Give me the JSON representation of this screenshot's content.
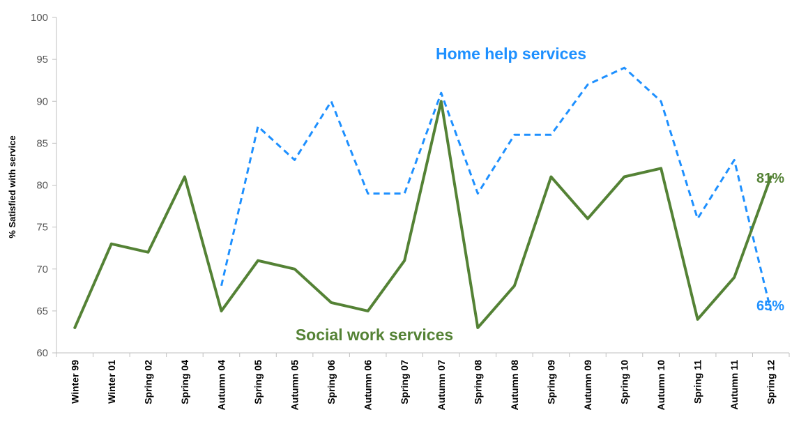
{
  "chart_data": {
    "type": "line",
    "title": "",
    "xlabel": "",
    "ylabel": "% Satisfied with service",
    "ylim": [
      60,
      100
    ],
    "yticks": [
      60,
      65,
      70,
      75,
      80,
      85,
      90,
      95,
      100
    ],
    "grid": false,
    "legend": "none",
    "categories": [
      "Winter 99",
      "Winter 01",
      "Spring 02",
      "Spring 04",
      "Autumn 04",
      "Spring 05",
      "Autumn 05",
      "Spring 06",
      "Autumn 06",
      "Spring 07",
      "Autumn 07",
      "Spring 08",
      "Autumn 08",
      "Spring 09",
      "Autumn 09",
      "Spring 10",
      "Autumn 10",
      "Spring 11",
      "Autumn 11",
      "Spring 12"
    ],
    "series": [
      {
        "name": "Home help services",
        "color": "#1e90ff",
        "style": "dashed",
        "values": [
          null,
          null,
          null,
          null,
          68,
          87,
          83,
          90,
          79,
          79,
          91,
          79,
          86,
          86,
          92,
          94,
          90,
          76,
          83,
          65
        ],
        "end_label": "65%"
      },
      {
        "name": "Social work services",
        "color": "#548235",
        "style": "solid",
        "values": [
          63,
          73,
          72,
          81,
          65,
          71,
          70,
          66,
          65,
          71,
          90,
          63,
          68,
          81,
          76,
          81,
          82,
          64,
          69,
          81
        ],
        "end_label": "81%"
      }
    ]
  }
}
